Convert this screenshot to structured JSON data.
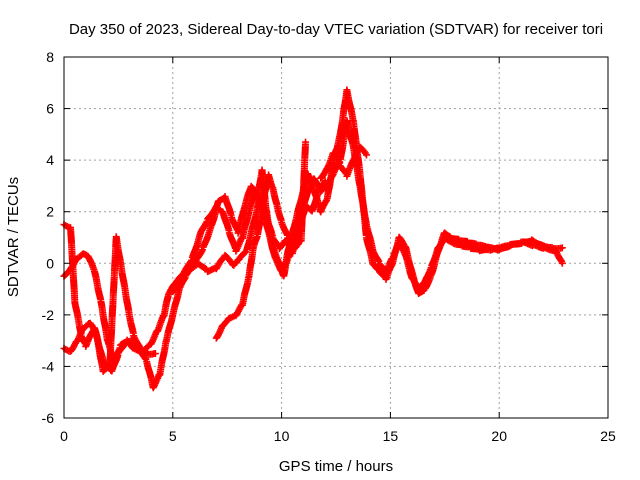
{
  "chart_data": {
    "type": "scatter",
    "title": "Day 350 of 2023, Sidereal Day-to-day VTEC variation (SDTVAR) for receiver tori",
    "xlabel": "GPS time / hours",
    "ylabel": "SDTVAR / TECUs",
    "xlim": [
      0,
      25
    ],
    "ylim": [
      -6,
      8
    ],
    "xticks": [
      0,
      5,
      10,
      15,
      20,
      25
    ],
    "yticks": [
      -6,
      -4,
      -2,
      0,
      2,
      4,
      6,
      8
    ],
    "xtick_labels": [
      "0",
      "5",
      "10",
      "15",
      "20",
      "25"
    ],
    "ytick_labels": [
      "-6",
      "-4",
      "-2",
      "0",
      "2",
      "4",
      "6",
      "8"
    ],
    "grid": true,
    "marker": "plus",
    "series": [
      {
        "name": "SDTVAR",
        "color": "#ff0000",
        "tracks": [
          [
            [
              0.0,
              1.5
            ],
            [
              0.3,
              1.4
            ],
            [
              0.5,
              -1.5
            ],
            [
              0.8,
              -2.8
            ],
            [
              1.0,
              -3.2
            ],
            [
              1.4,
              -2.5
            ],
            [
              1.8,
              -3.8
            ],
            [
              2.2,
              -4.2
            ],
            [
              2.5,
              -3.5
            ],
            [
              2.8,
              -3.1
            ],
            [
              3.1,
              -3.0
            ],
            [
              3.4,
              -3.2
            ],
            [
              3.8,
              -3.8
            ],
            [
              4.1,
              -4.8
            ],
            [
              4.4,
              -4.3
            ],
            [
              4.7,
              -3.0
            ],
            [
              5.0,
              -2.0
            ],
            [
              5.3,
              -1.0
            ],
            [
              5.6,
              -0.5
            ],
            [
              6.0,
              0.0
            ],
            [
              6.4,
              0.6
            ],
            [
              6.8,
              1.5
            ],
            [
              7.1,
              2.4
            ],
            [
              7.4,
              2.6
            ],
            [
              7.7,
              1.8
            ],
            [
              8.0,
              1.2
            ],
            [
              8.3,
              2.2
            ],
            [
              8.6,
              3.0
            ],
            [
              8.9,
              2.6
            ],
            [
              9.1,
              3.6
            ],
            [
              9.3,
              2.0
            ],
            [
              9.6,
              0.6
            ],
            [
              9.9,
              0.0
            ],
            [
              10.1,
              -0.5
            ],
            [
              10.3,
              0.5
            ],
            [
              10.6,
              1.5
            ],
            [
              10.9,
              2.5
            ],
            [
              11.2,
              3.5
            ],
            [
              11.5,
              2.8
            ],
            [
              11.8,
              2.0
            ],
            [
              12.1,
              2.5
            ],
            [
              12.4,
              4.0
            ],
            [
              12.7,
              5.0
            ],
            [
              13.0,
              6.7
            ],
            [
              13.3,
              5.5
            ],
            [
              13.6,
              3.5
            ],
            [
              13.9,
              1.0
            ],
            [
              14.2,
              0.0
            ],
            [
              14.5,
              -0.3
            ],
            [
              14.8,
              -0.6
            ],
            [
              15.1,
              0.0
            ],
            [
              15.4,
              1.0
            ],
            [
              15.7,
              0.6
            ],
            [
              16.0,
              -0.4
            ],
            [
              16.3,
              -1.2
            ],
            [
              16.6,
              -1.0
            ],
            [
              16.9,
              -0.4
            ],
            [
              17.2,
              0.5
            ],
            [
              17.5,
              1.2
            ],
            [
              17.8,
              1.0
            ],
            [
              18.2,
              0.9
            ],
            [
              18.6,
              0.8
            ],
            [
              19.0,
              0.7
            ],
            [
              19.5,
              0.6
            ],
            [
              20.0,
              0.5
            ],
            [
              20.5,
              0.7
            ],
            [
              21.0,
              0.8
            ],
            [
              21.5,
              0.9
            ],
            [
              22.0,
              0.7
            ],
            [
              22.5,
              0.6
            ],
            [
              22.9,
              0.6
            ]
          ],
          [
            [
              0.0,
              -0.5
            ],
            [
              0.3,
              -0.2
            ],
            [
              0.6,
              0.2
            ],
            [
              0.9,
              0.4
            ],
            [
              1.1,
              0.3
            ],
            [
              1.4,
              -0.3
            ],
            [
              1.7,
              -1.5
            ],
            [
              2.0,
              -3.0
            ],
            [
              2.3,
              -3.8
            ],
            [
              2.6,
              -3.2
            ],
            [
              2.9,
              -3.0
            ],
            [
              3.2,
              -3.3
            ],
            [
              3.6,
              -3.4
            ],
            [
              4.0,
              -3.1
            ],
            [
              4.3,
              -2.6
            ],
            [
              4.6,
              -2.0
            ],
            [
              4.8,
              -1.2
            ],
            [
              5.1,
              -0.8
            ],
            [
              5.5,
              -0.4
            ],
            [
              5.9,
              0.2
            ],
            [
              6.3,
              1.2
            ],
            [
              6.6,
              1.7
            ],
            [
              7.0,
              2.2
            ],
            [
              7.3,
              2.0
            ],
            [
              7.6,
              1.2
            ],
            [
              7.9,
              0.5
            ],
            [
              8.2,
              1.0
            ],
            [
              8.5,
              2.0
            ],
            [
              8.8,
              2.8
            ],
            [
              9.1,
              2.2
            ],
            [
              9.4,
              1.2
            ],
            [
              9.7,
              0.2
            ],
            [
              10.0,
              -0.3
            ],
            [
              10.3,
              0.2
            ],
            [
              10.6,
              0.8
            ],
            [
              10.9,
              1.8
            ],
            [
              11.2,
              2.8
            ],
            [
              11.5,
              3.3
            ],
            [
              11.8,
              2.8
            ],
            [
              12.1,
              3.0
            ],
            [
              12.4,
              3.5
            ],
            [
              12.7,
              4.0
            ],
            [
              13.0,
              5.5
            ],
            [
              13.3,
              4.5
            ],
            [
              13.6,
              3.0
            ],
            [
              13.9,
              1.5
            ],
            [
              14.2,
              0.5
            ],
            [
              14.5,
              0.0
            ],
            [
              14.8,
              -0.3
            ],
            [
              15.1,
              0.2
            ],
            [
              15.4,
              0.8
            ],
            [
              15.7,
              0.3
            ],
            [
              16.0,
              -0.6
            ],
            [
              16.3,
              -1.0
            ],
            [
              16.6,
              -0.7
            ],
            [
              16.9,
              -0.1
            ],
            [
              17.2,
              0.6
            ],
            [
              17.5,
              1.0
            ],
            [
              17.9,
              0.8
            ],
            [
              18.3,
              0.7
            ],
            [
              18.7,
              0.6
            ],
            [
              19.1,
              0.5
            ],
            [
              19.6,
              0.5
            ],
            [
              20.1,
              0.6
            ],
            [
              20.6,
              0.7
            ],
            [
              21.1,
              0.8
            ],
            [
              21.6,
              0.7
            ],
            [
              22.1,
              0.6
            ],
            [
              22.6,
              0.5
            ],
            [
              22.9,
              0.0
            ]
          ],
          [
            [
              0.0,
              -3.3
            ],
            [
              0.3,
              -3.4
            ],
            [
              0.6,
              -3.0
            ],
            [
              0.9,
              -2.5
            ],
            [
              1.2,
              -2.3
            ],
            [
              1.5,
              -2.8
            ],
            [
              1.8,
              -4.2
            ],
            [
              2.1,
              -4.0
            ],
            [
              2.4,
              1.0
            ],
            [
              2.6,
              0.0
            ],
            [
              2.8,
              -1.0
            ],
            [
              3.0,
              -2.0
            ],
            [
              3.2,
              -2.8
            ],
            [
              3.5,
              -3.3
            ],
            [
              3.9,
              -3.5
            ],
            [
              4.2,
              -3.5
            ]
          ],
          [
            [
              5.0,
              -1.1
            ],
            [
              5.4,
              -0.6
            ],
            [
              5.8,
              -0.2
            ],
            [
              6.2,
              0.0
            ],
            [
              6.6,
              -0.3
            ],
            [
              7.0,
              -0.2
            ],
            [
              7.4,
              0.3
            ],
            [
              7.8,
              -0.1
            ],
            [
              8.1,
              0.2
            ],
            [
              8.4,
              0.5
            ],
            [
              8.7,
              1.5
            ],
            [
              9.0,
              2.5
            ],
            [
              9.3,
              1.8
            ],
            [
              9.6,
              1.0
            ],
            [
              9.9,
              0.6
            ],
            [
              10.2,
              0.9
            ],
            [
              10.5,
              0.4
            ],
            [
              10.8,
              1.4
            ],
            [
              11.1,
              2.2
            ],
            [
              11.4,
              2.0
            ],
            [
              11.7,
              2.8
            ],
            [
              12.0,
              3.2
            ]
          ],
          [
            [
              7.0,
              -2.9
            ],
            [
              7.3,
              -2.4
            ],
            [
              7.6,
              -2.1
            ],
            [
              7.9,
              -2.0
            ],
            [
              8.2,
              -1.6
            ],
            [
              8.5,
              -0.5
            ],
            [
              8.7,
              0.6
            ],
            [
              8.9,
              1.1
            ],
            [
              9.2,
              2.6
            ],
            [
              9.4,
              3.4
            ],
            [
              9.6,
              2.9
            ],
            [
              9.8,
              2.2
            ],
            [
              10.0,
              1.6
            ],
            [
              10.3,
              1.0
            ],
            [
              10.6,
              0.6
            ],
            [
              10.9,
              0.9
            ],
            [
              11.1,
              4.7
            ]
          ],
          [
            [
              11.8,
              3.3
            ],
            [
              12.1,
              3.7
            ],
            [
              12.4,
              4.3
            ],
            [
              12.7,
              3.8
            ],
            [
              13.0,
              3.4
            ],
            [
              13.3,
              4.0
            ],
            [
              13.6,
              4.5
            ],
            [
              13.9,
              4.2
            ]
          ]
        ]
      }
    ]
  }
}
